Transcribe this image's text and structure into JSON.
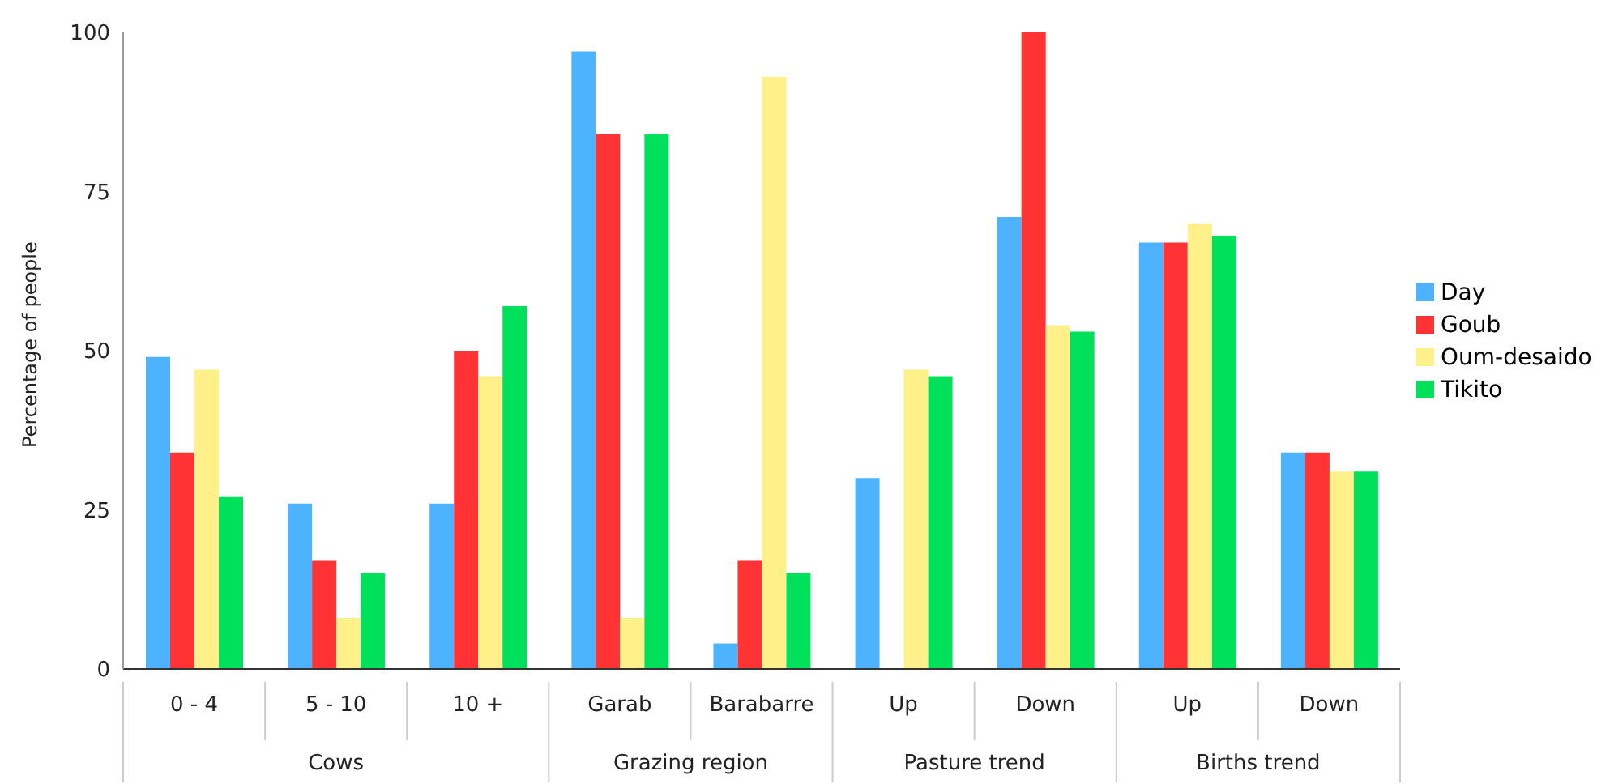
{
  "chart_data": {
    "type": "bar",
    "ylabel": "Percentage of people",
    "categories": [
      "0 - 4",
      "5 - 10",
      "10 +",
      "Garab",
      "Barabarre",
      "Up",
      "Down",
      "Up",
      "Down"
    ],
    "annotations": [
      "Cows",
      "Grazing region",
      "Pasture trend",
      "Births trend"
    ],
    "series": [
      {
        "name": "Day",
        "color": "#4db3ff",
        "values": [
          49,
          26,
          26,
          97,
          4,
          30,
          71,
          67,
          34
        ]
      },
      {
        "name": "Goub",
        "color": "#ff3333",
        "values": [
          34,
          17,
          50,
          84,
          17,
          null,
          100,
          67,
          34
        ]
      },
      {
        "name": "Oum-desaido",
        "color": "#fff08a",
        "values": [
          47,
          8,
          46,
          8,
          93,
          47,
          54,
          70,
          31
        ]
      },
      {
        "name": "Tikito",
        "color": "#00e05a",
        "values": [
          27,
          15,
          57,
          84,
          15,
          46,
          53,
          68,
          31
        ]
      }
    ],
    "ylim": [
      0,
      100
    ],
    "yticks": [
      0,
      25,
      50,
      75,
      100
    ],
    "grid": false,
    "legend": "right"
  }
}
